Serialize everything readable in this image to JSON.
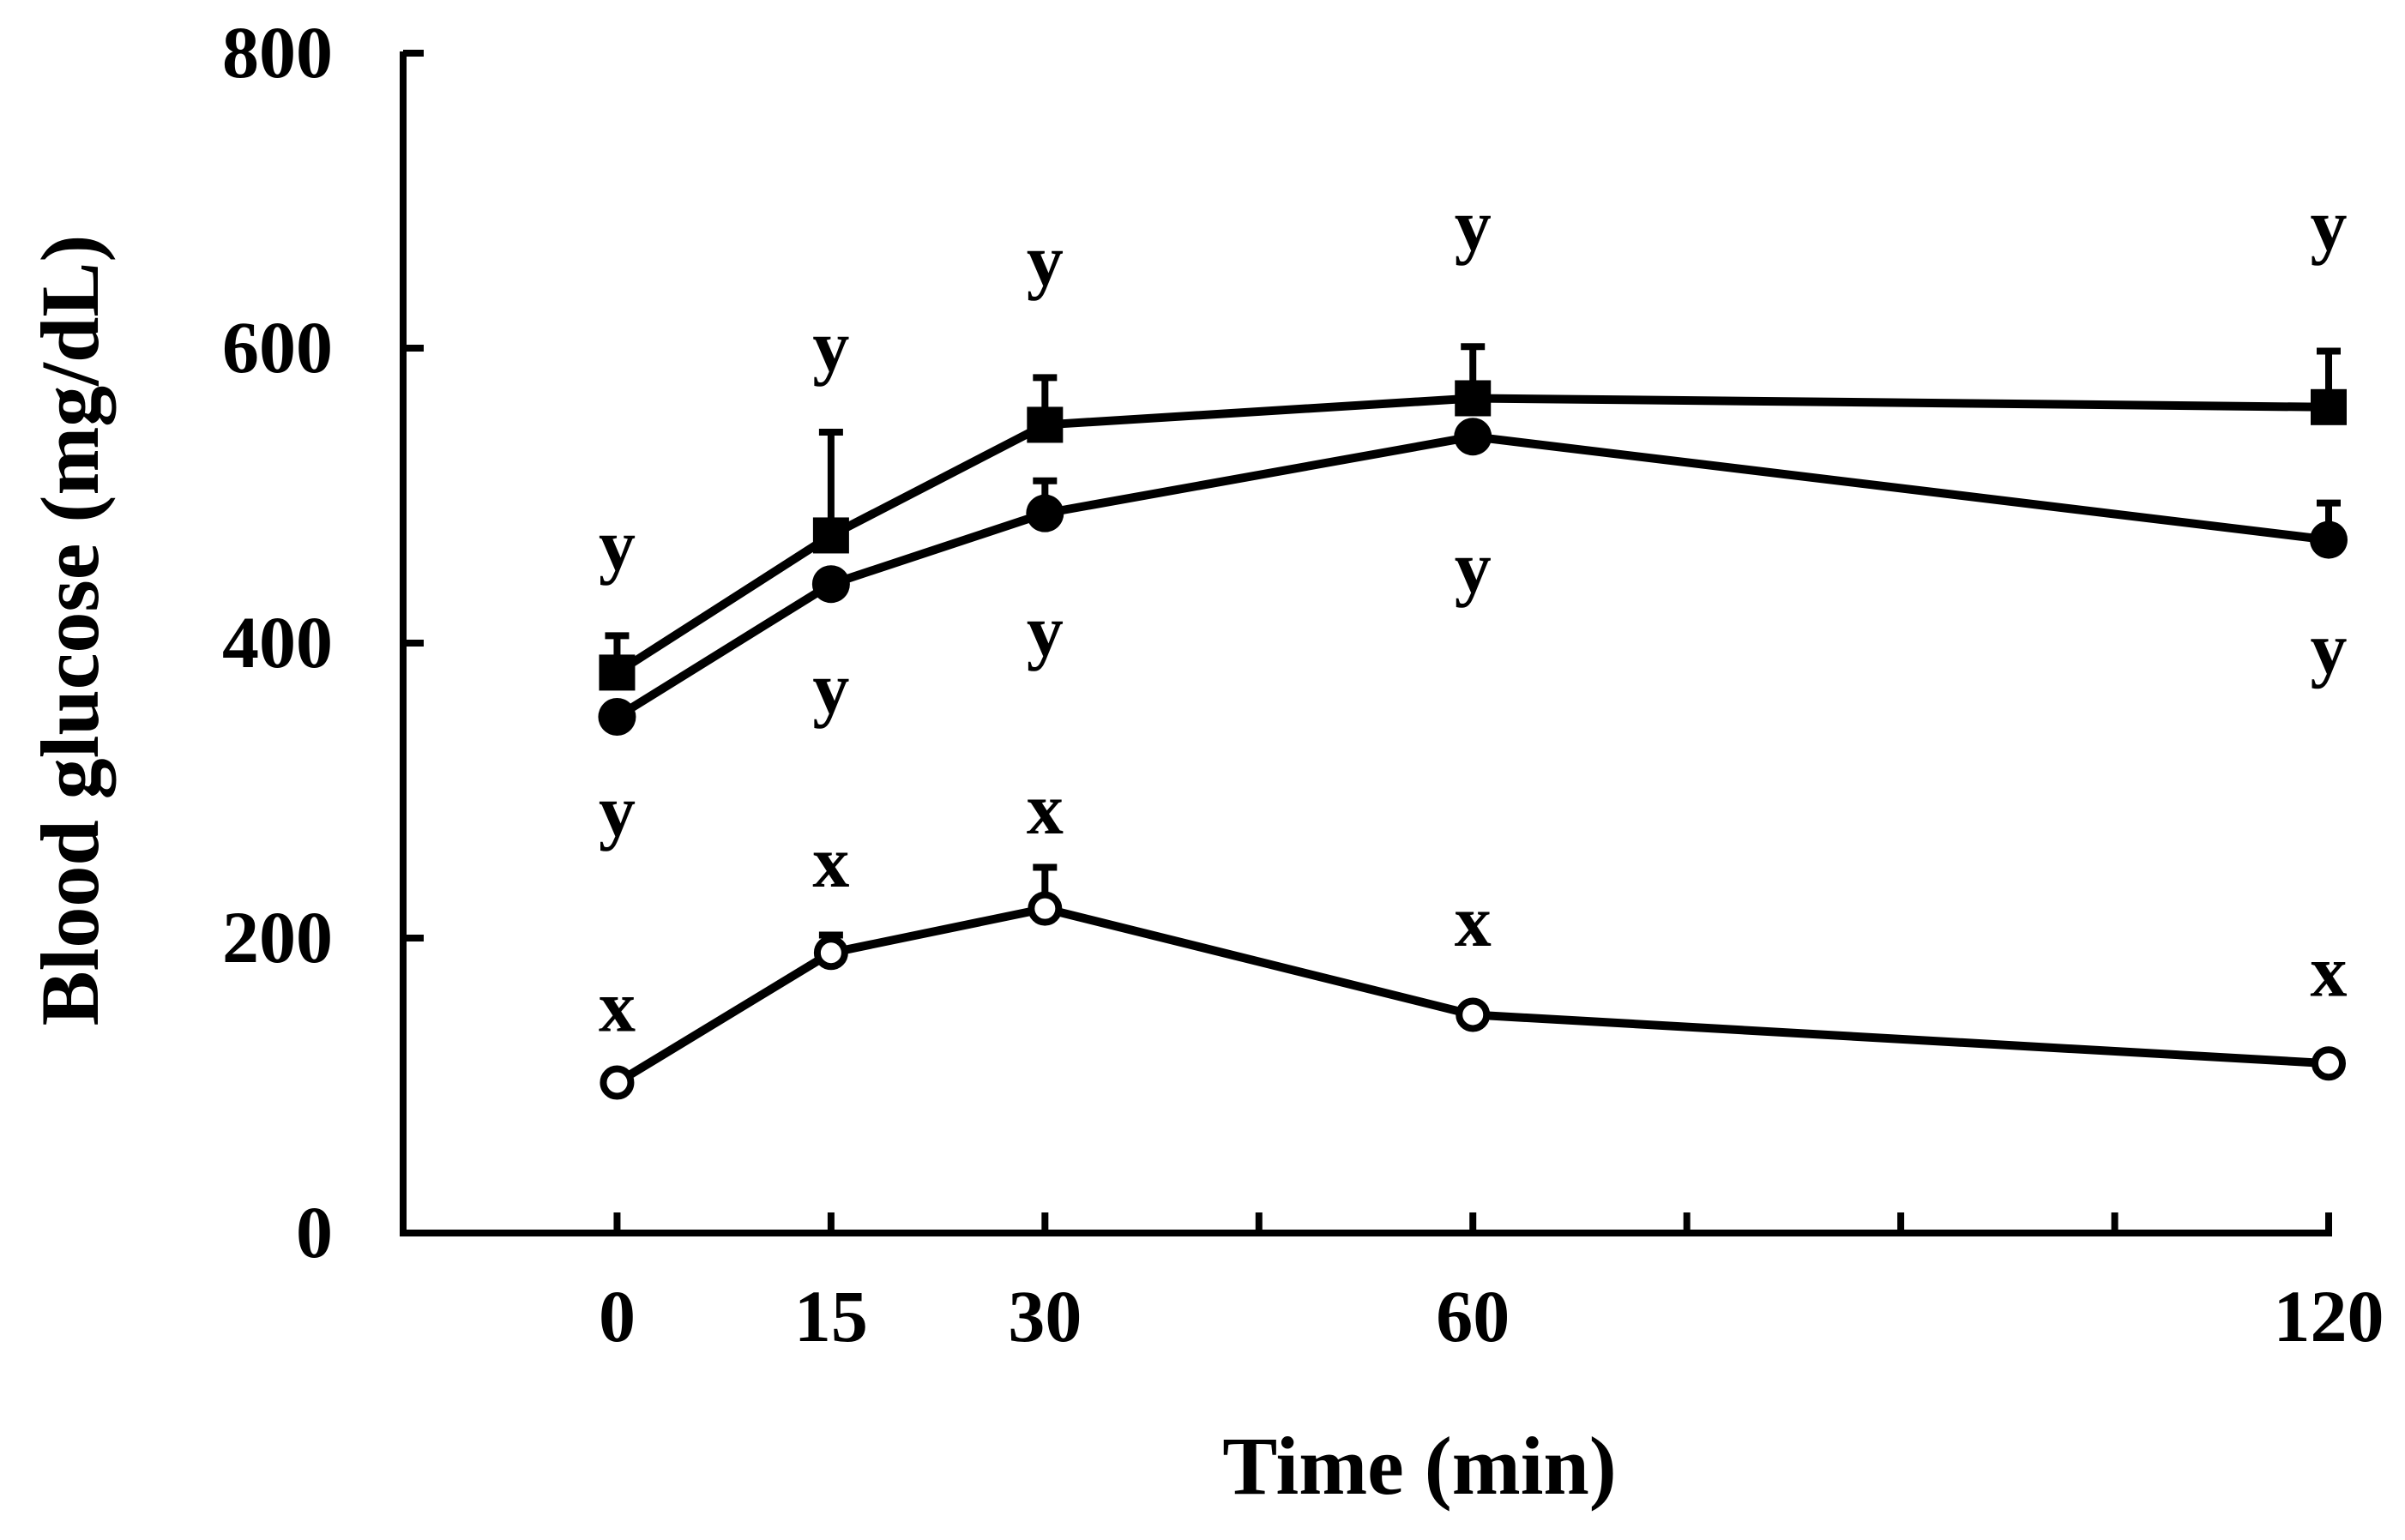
{
  "chart_data": {
    "type": "line",
    "title": "",
    "xlabel": "Time (min)",
    "ylabel": "Blood glucose (mg/dL)",
    "xlim": [
      -15,
      120
    ],
    "ylim": [
      0,
      800
    ],
    "x": [
      0,
      15,
      30,
      60,
      120
    ],
    "x_tick_labels": [
      "0",
      "15",
      "30",
      "60",
      "120"
    ],
    "x_minor_ticks": [
      45,
      75,
      90,
      105
    ],
    "y_ticks": [
      0,
      200,
      400,
      600,
      800
    ],
    "y_tick_labels": [
      "0",
      "200",
      "400",
      "600",
      "800"
    ],
    "grid": false,
    "legend": "none",
    "colors": {
      "line": "#000000",
      "filled_marker": "#000000",
      "open_marker_fill": "#ffffff"
    },
    "series": [
      {
        "name": "filled-square-series",
        "marker": "square-filled",
        "values": [
          380,
          473,
          548,
          566,
          560
        ],
        "errors": [
          25,
          70,
          32,
          35,
          38
        ]
      },
      {
        "name": "filled-circle-series",
        "marker": "circle-filled",
        "values": [
          350,
          440,
          488,
          540,
          470
        ],
        "errors": [
          0,
          0,
          22,
          0,
          25
        ]
      },
      {
        "name": "open-circle-series",
        "marker": "circle-open",
        "values": [
          102,
          190,
          220,
          148,
          115
        ],
        "errors": [
          0,
          12,
          28,
          0,
          0
        ]
      }
    ],
    "annotations": [
      {
        "text": "y",
        "x": 0,
        "y": 465
      },
      {
        "text": "y",
        "x": 15,
        "y": 600
      },
      {
        "text": "y",
        "x": 30,
        "y": 658
      },
      {
        "text": "y",
        "x": 60,
        "y": 682
      },
      {
        "text": "y",
        "x": 120,
        "y": 682
      },
      {
        "text": "y",
        "x": 0,
        "y": 285
      },
      {
        "text": "y",
        "x": 15,
        "y": 368
      },
      {
        "text": "y",
        "x": 30,
        "y": 407
      },
      {
        "text": "y",
        "x": 60,
        "y": 450
      },
      {
        "text": "y",
        "x": 120,
        "y": 395
      },
      {
        "text": "x",
        "x": 0,
        "y": 152
      },
      {
        "text": "x",
        "x": 15,
        "y": 250
      },
      {
        "text": "x",
        "x": 30,
        "y": 286
      },
      {
        "text": "x",
        "x": 60,
        "y": 210
      },
      {
        "text": "x",
        "x": 120,
        "y": 176
      }
    ]
  }
}
